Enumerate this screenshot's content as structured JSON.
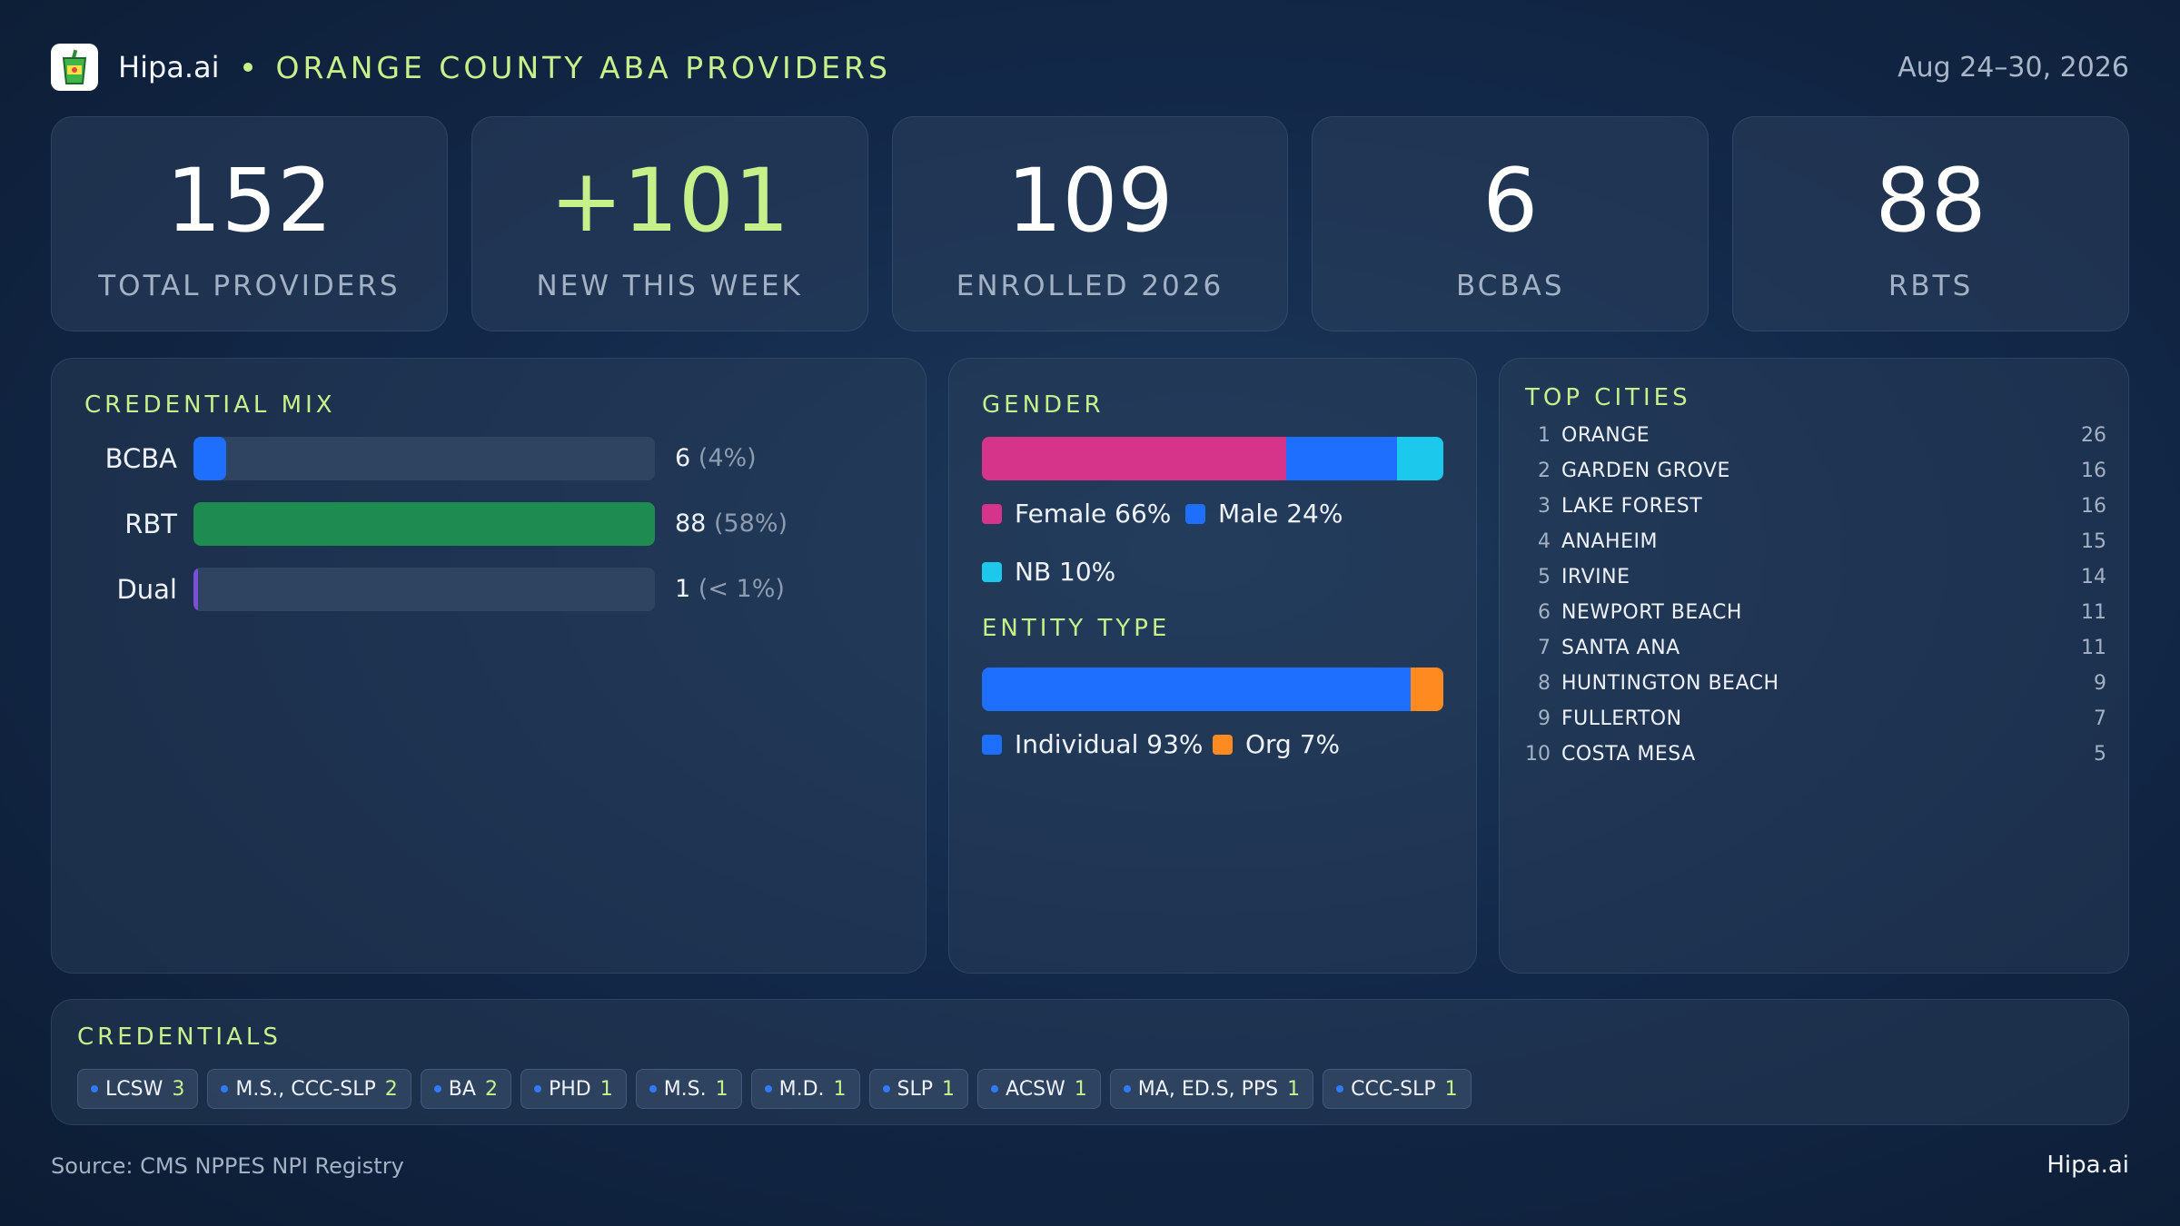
{
  "header": {
    "brand": "Hipa.ai",
    "title": "ORANGE COUNTY ABA PROVIDERS",
    "date": "Aug 24–30, 2026",
    "logo_icon": "drink-cup-icon"
  },
  "stats": [
    {
      "value": "152",
      "label": "TOTAL PROVIDERS"
    },
    {
      "value": "+101",
      "label": "NEW THIS WEEK"
    },
    {
      "value": "109",
      "label": "ENROLLED 2026"
    },
    {
      "value": "6",
      "label": "BCBAS"
    },
    {
      "value": "88",
      "label": "RBTS"
    }
  ],
  "credential_mix": {
    "title": "CREDENTIAL MIX",
    "rows": [
      {
        "label": "BCBA",
        "count": "6",
        "pct": "(4%)",
        "fraction": 0.07,
        "color": "#1f6fff"
      },
      {
        "label": "RBT",
        "count": "88",
        "pct": "(58%)",
        "fraction": 1.0,
        "color": "#1e8b50"
      },
      {
        "label": "Dual",
        "count": "1",
        "pct": "(< 1%)",
        "fraction": 0.01,
        "color": "#7b4fd6"
      }
    ]
  },
  "gender": {
    "title": "GENDER",
    "segments": [
      {
        "label": "Female 66%",
        "fraction": 0.66,
        "color": "#d6338a"
      },
      {
        "label": "Male 24%",
        "fraction": 0.24,
        "color": "#1f6fff"
      },
      {
        "label": "NB 10%",
        "fraction": 0.1,
        "color": "#1cc8ec"
      }
    ]
  },
  "entity_type": {
    "title": "ENTITY TYPE",
    "segments": [
      {
        "label": "Individual 93%",
        "fraction": 0.93,
        "color": "#1f6fff"
      },
      {
        "label": "Org 7%",
        "fraction": 0.07,
        "color": "#ff8a1f"
      }
    ]
  },
  "top_cities": {
    "title": "TOP CITIES",
    "items": [
      {
        "rank": "1",
        "name": "ORANGE",
        "count": "26"
      },
      {
        "rank": "2",
        "name": "GARDEN GROVE",
        "count": "16"
      },
      {
        "rank": "3",
        "name": "LAKE FOREST",
        "count": "16"
      },
      {
        "rank": "4",
        "name": "ANAHEIM",
        "count": "15"
      },
      {
        "rank": "5",
        "name": "IRVINE",
        "count": "14"
      },
      {
        "rank": "6",
        "name": "NEWPORT BEACH",
        "count": "11"
      },
      {
        "rank": "7",
        "name": "SANTA ANA",
        "count": "11"
      },
      {
        "rank": "8",
        "name": "HUNTINGTON BEACH",
        "count": "9"
      },
      {
        "rank": "9",
        "name": "FULLERTON",
        "count": "7"
      },
      {
        "rank": "10",
        "name": "COSTA MESA",
        "count": "5"
      }
    ]
  },
  "credentials": {
    "title": "CREDENTIALS",
    "chips": [
      {
        "label": "LCSW",
        "count": "3"
      },
      {
        "label": "M.S., CCC-SLP",
        "count": "2"
      },
      {
        "label": "BA",
        "count": "2"
      },
      {
        "label": "PHD",
        "count": "1"
      },
      {
        "label": "M.S.",
        "count": "1"
      },
      {
        "label": "M.D.",
        "count": "1"
      },
      {
        "label": "SLP",
        "count": "1"
      },
      {
        "label": "ACSW",
        "count": "1"
      },
      {
        "label": "MA, ED.S, PPS",
        "count": "1"
      },
      {
        "label": "CCC-SLP",
        "count": "1"
      }
    ]
  },
  "footer": {
    "source": "Source: CMS NPPES NPI Registry",
    "brand": "Hipa.ai"
  }
}
